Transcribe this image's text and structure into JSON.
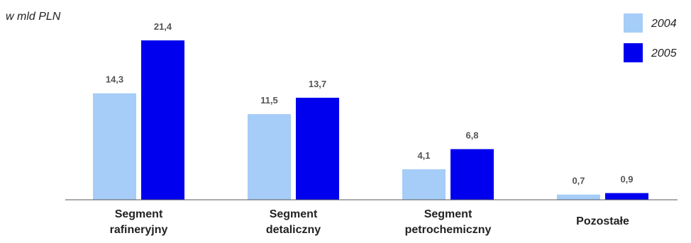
{
  "chart_data": {
    "type": "bar",
    "unit_label": "w mld PLN",
    "categories": [
      [
        "Segment",
        "rafineryjny"
      ],
      [
        "Segment",
        "detaliczny"
      ],
      [
        "Segment",
        "petrochemiczny"
      ],
      [
        "Pozostałe"
      ]
    ],
    "series": [
      {
        "name": "2004",
        "color": "#a6cdf8",
        "values": [
          14.3,
          11.5,
          4.1,
          0.7
        ],
        "labels": [
          "14,3",
          "11,5",
          "4,1",
          "0,7"
        ]
      },
      {
        "name": "2005",
        "color": "#0000ee",
        "values": [
          21.4,
          13.7,
          6.8,
          0.9
        ],
        "labels": [
          "21,4",
          "13,7",
          "6,8",
          "0,9"
        ]
      }
    ],
    "ylim": [
      0,
      24
    ],
    "grid": false,
    "legend_position": "top-right"
  }
}
